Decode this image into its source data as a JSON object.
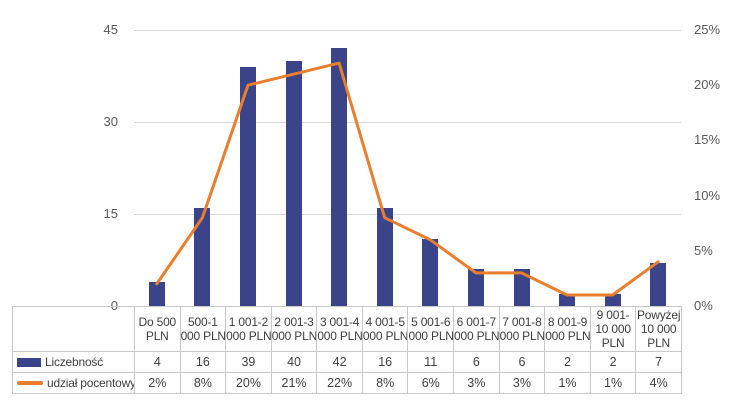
{
  "chart_data": {
    "type": "bar",
    "subtype": "combo-bar-line",
    "title": "",
    "xlabel": "",
    "ylabel": "",
    "grid": true,
    "legend_position": "data-table-left",
    "categories": [
      "Do 500 PLN",
      "500-1 000 PLN",
      "1 001-2 000 PLN",
      "2 001-3 000 PLN",
      "3 001-4 000 PLN",
      "4 001-5 000 PLN",
      "5 001-6 000 PLN",
      "6 001-7 000 PLN",
      "7 001-8 000 PLN",
      "8 001-9 000 PLN",
      "9 001-10 000 PLN",
      "Powyżej 10 000 PLN"
    ],
    "series": [
      {
        "name": "Liczebność",
        "type": "bar",
        "axis": "left",
        "color": "#3b4489",
        "values": [
          4,
          16,
          39,
          40,
          42,
          16,
          11,
          6,
          6,
          2,
          2,
          7
        ]
      },
      {
        "name": "udział pocentowy",
        "type": "line",
        "axis": "right",
        "color": "#e87e2e",
        "values": [
          2,
          8,
          20,
          21,
          22,
          8,
          6,
          3,
          3,
          1,
          1,
          4
        ],
        "unit": "%"
      }
    ],
    "left_axis": {
      "max": 45,
      "min": 0,
      "tick_values": [
        45,
        30,
        15,
        0
      ],
      "tick_labels": [
        "45",
        "30",
        "15",
        "0"
      ]
    },
    "right_axis": {
      "max": 25,
      "min": 0,
      "tick_values": [
        25,
        20,
        15,
        10,
        5,
        0
      ],
      "tick_labels": [
        "25%",
        "20%",
        "15%",
        "10%",
        "5%",
        "0%"
      ]
    }
  },
  "table": {
    "header_labels": [
      "Do 500\nPLN",
      "500-1\n000 PLN",
      "1 001-2\n000 PLN",
      "2 001-3\n000 PLN",
      "3 001-4\n000 PLN",
      "4 001-5\n000 PLN",
      "5 001-6\n000 PLN",
      "6 001-7\n000 PLN",
      "7 001-8\n000 PLN",
      "8 001-9\n000 PLN",
      "9 001-\n10 000\nPLN",
      "Powyżej\n10 000\nPLN"
    ],
    "rows": [
      {
        "label": "Liczebność",
        "swatch": "bar",
        "values": [
          "4",
          "16",
          "39",
          "40",
          "42",
          "16",
          "11",
          "6",
          "6",
          "2",
          "2",
          "7"
        ]
      },
      {
        "label": "udział pocentowy",
        "swatch": "line",
        "values": [
          "2%",
          "8%",
          "20%",
          "21%",
          "22%",
          "8%",
          "6%",
          "3%",
          "3%",
          "1%",
          "1%",
          "4%"
        ]
      }
    ]
  },
  "colors": {
    "bar": "#3b4489",
    "line": "#e87e2e",
    "gridline": "#d9d9d9",
    "table_border": "#c9c9c9",
    "axis_text": "#595959",
    "table_text": "#404040",
    "background": "#ffffff"
  }
}
